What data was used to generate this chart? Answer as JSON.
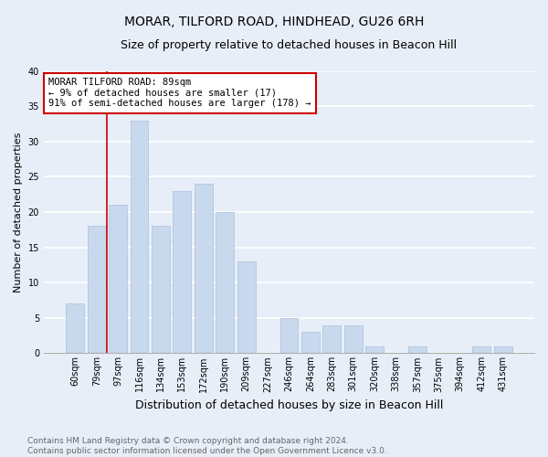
{
  "title": "MORAR, TILFORD ROAD, HINDHEAD, GU26 6RH",
  "subtitle": "Size of property relative to detached houses in Beacon Hill",
  "xlabel": "Distribution of detached houses by size in Beacon Hill",
  "ylabel": "Number of detached properties",
  "categories": [
    "60sqm",
    "79sqm",
    "97sqm",
    "116sqm",
    "134sqm",
    "153sqm",
    "172sqm",
    "190sqm",
    "209sqm",
    "227sqm",
    "246sqm",
    "264sqm",
    "283sqm",
    "301sqm",
    "320sqm",
    "338sqm",
    "357sqm",
    "375sqm",
    "394sqm",
    "412sqm",
    "431sqm"
  ],
  "values": [
    7,
    18,
    21,
    33,
    18,
    23,
    24,
    20,
    13,
    0,
    5,
    3,
    4,
    4,
    1,
    0,
    1,
    0,
    0,
    1,
    1
  ],
  "bar_color": "#c8d9ee",
  "bar_edge_color": "#a8c0dc",
  "background_color": "#e8eef8",
  "grid_color": "#ffffff",
  "annotation_text_line1": "MORAR TILFORD ROAD: 89sqm",
  "annotation_text_line2": "← 9% of detached houses are smaller (17)",
  "annotation_text_line3": "91% of semi-detached houses are larger (178) →",
  "annotation_box_color": "#ffffff",
  "annotation_box_edge": "#cc0000",
  "red_line_color": "#cc0000",
  "ylim": [
    0,
    40
  ],
  "yticks": [
    0,
    5,
    10,
    15,
    20,
    25,
    30,
    35,
    40
  ],
  "footer_line1": "Contains HM Land Registry data © Crown copyright and database right 2024.",
  "footer_line2": "Contains public sector information licensed under the Open Government Licence v3.0.",
  "title_fontsize": 10,
  "subtitle_fontsize": 9,
  "xlabel_fontsize": 9,
  "ylabel_fontsize": 8,
  "tick_fontsize": 7,
  "annotation_fontsize": 7.5,
  "footer_fontsize": 6.5
}
